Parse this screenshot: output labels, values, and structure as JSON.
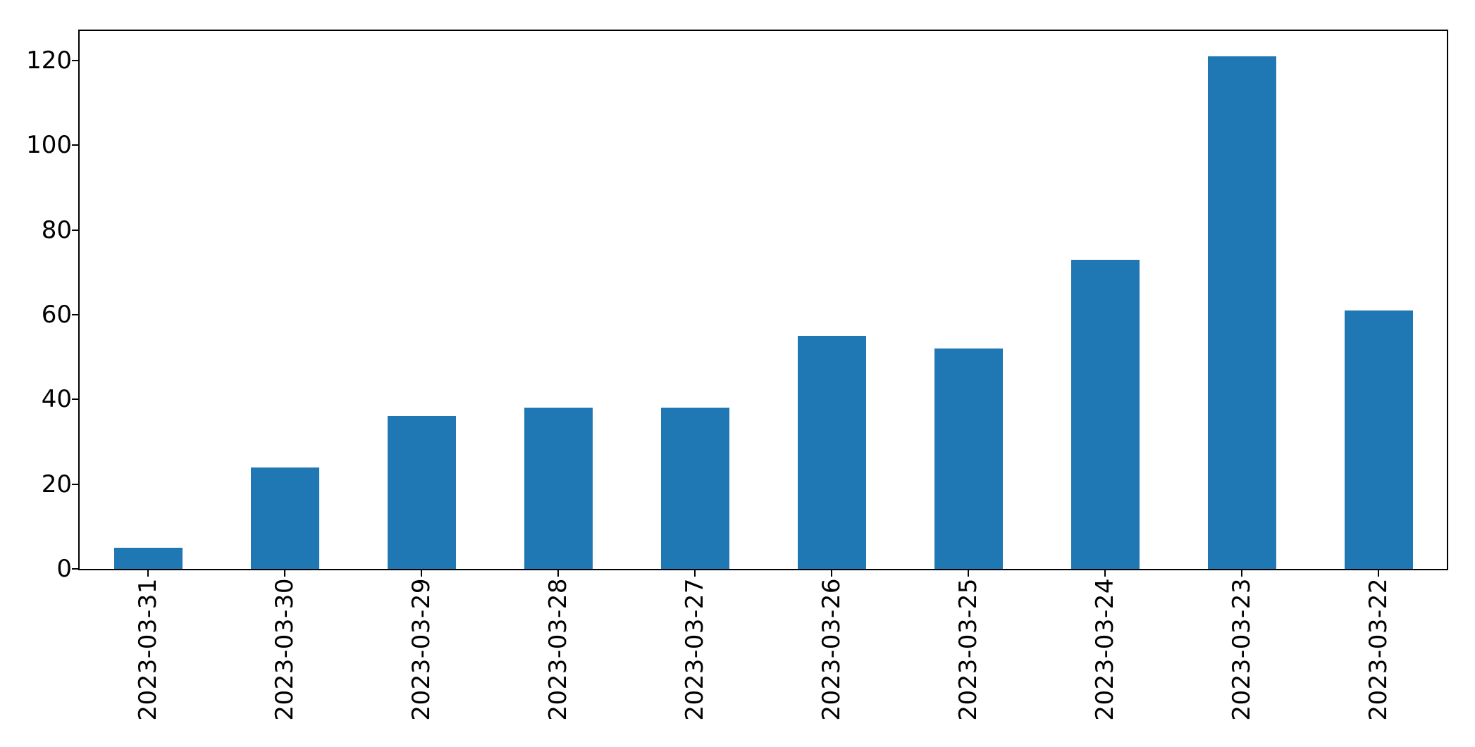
{
  "figure": {
    "background": "#ffffff"
  },
  "chart_data": {
    "type": "bar",
    "categories": [
      "2023-03-31",
      "2023-03-30",
      "2023-03-29",
      "2023-03-28",
      "2023-03-27",
      "2023-03-26",
      "2023-03-25",
      "2023-03-24",
      "2023-03-23",
      "2023-03-22"
    ],
    "values": [
      5,
      24,
      36,
      38,
      38,
      55,
      52,
      73,
      121,
      61
    ],
    "title": "",
    "xlabel": "",
    "ylabel": "",
    "ylim": [
      0,
      127
    ],
    "yticks": [
      0,
      20,
      40,
      60,
      80,
      100,
      120
    ],
    "bar_color": "#1f77b4",
    "axis_color": "#000000",
    "grid": false,
    "legend": "none",
    "bar_relative_width": 0.5,
    "x_tick_label_rotation": 90
  }
}
